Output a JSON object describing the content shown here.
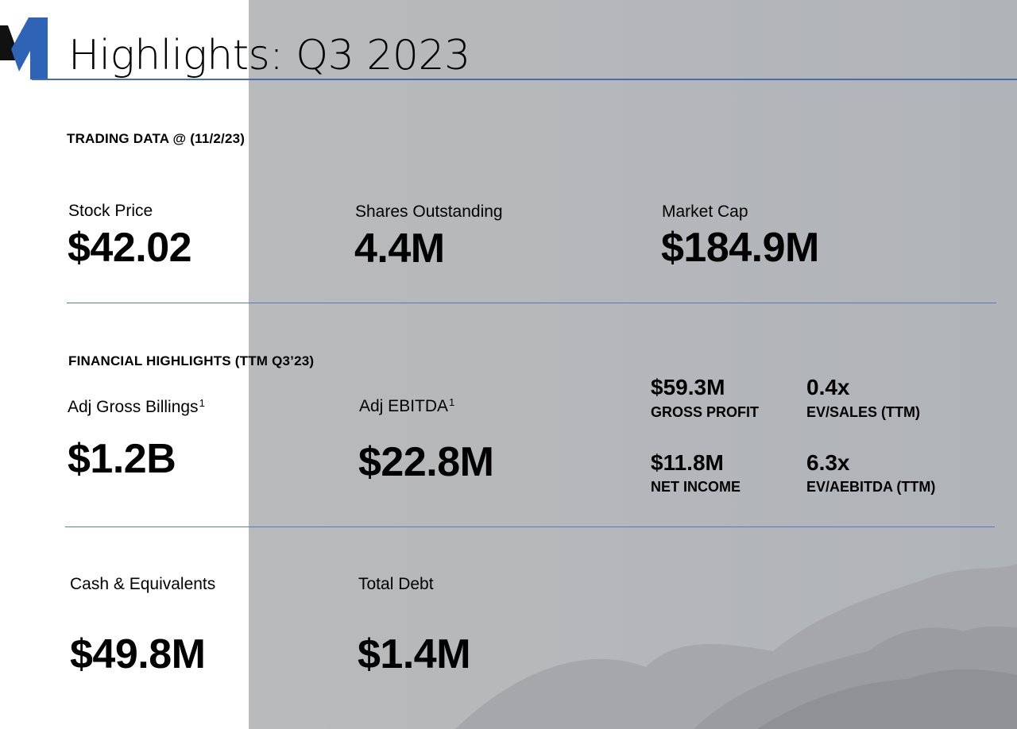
{
  "slide": {
    "title": "Highlights: Q3 2023",
    "colors": {
      "accent": "#2f63b5",
      "rule": "#5a78c0",
      "panel": "#b5b7ba"
    },
    "logo_icon": "m-logo-icon",
    "trading": {
      "heading": "TRADING DATA @ (11/2/23)",
      "stock_price": {
        "label": "Stock Price",
        "value": "$42.02"
      },
      "shares_outstanding": {
        "label": "Shares Outstanding",
        "value": "4.4M"
      },
      "market_cap": {
        "label": "Market Cap",
        "value": "$184.9M"
      }
    },
    "financial": {
      "heading": "FINANCIAL HIGHLIGHTS (TTM Q3’23)",
      "adj_gross_billings": {
        "label": "Adj Gross Billings",
        "footnote": "1",
        "value": "$1.2B"
      },
      "adj_ebitda": {
        "label": "Adj EBITDA",
        "footnote": "1",
        "value": "$22.8M"
      },
      "gross_profit": {
        "value": "$59.3M",
        "label": "GROSS PROFIT"
      },
      "ev_sales": {
        "value": "0.4x",
        "label": "EV/SALES (TTM)"
      },
      "net_income": {
        "value": "$11.8M",
        "label": "NET INCOME"
      },
      "ev_aebitda": {
        "value": "6.3x",
        "label": "EV/AEBITDA (TTM)"
      }
    },
    "balance": {
      "cash": {
        "label": "Cash & Equivalents",
        "value": "$49.8M"
      },
      "debt": {
        "label": "Total Debt",
        "value": "$1.4M"
      }
    }
  }
}
